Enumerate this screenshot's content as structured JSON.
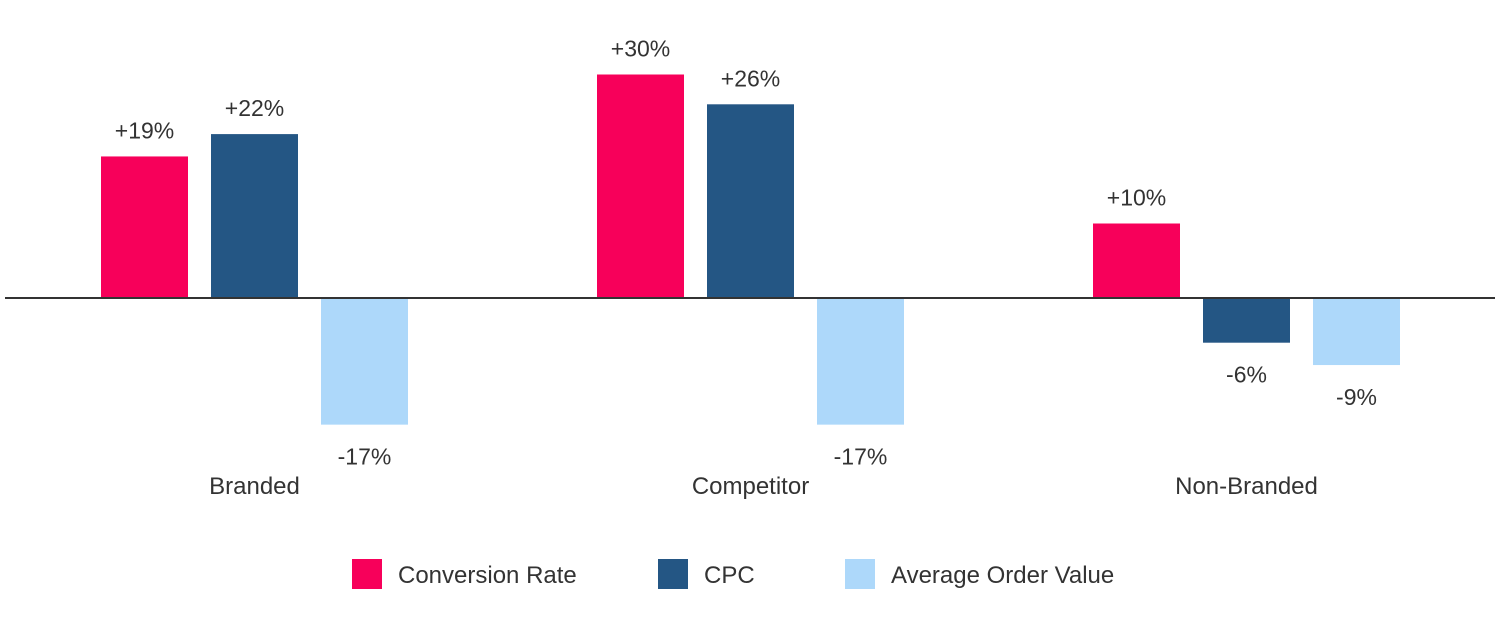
{
  "chart_data": {
    "type": "bar",
    "categories": [
      "Branded",
      "Competitor",
      "Non-Branded"
    ],
    "series": [
      {
        "name": "Conversion Rate",
        "color": "#F7005A",
        "values": [
          19,
          30,
          10
        ],
        "labels": [
          "+19%",
          "+30%",
          "+10%"
        ]
      },
      {
        "name": "CPC",
        "color": "#245684",
        "values": [
          22,
          26,
          -6
        ],
        "labels": [
          "+22%",
          "+26%",
          "-6%"
        ]
      },
      {
        "name": "Average Order Value",
        "color": "#ADD8FA",
        "values": [
          -17,
          -17,
          -9
        ],
        "labels": [
          "-17%",
          "-17%",
          "-9%"
        ]
      }
    ],
    "title": "",
    "xlabel": "",
    "ylabel": "",
    "ylim": [
      -22,
      33
    ],
    "grid": false,
    "legend_position": "bottom-center",
    "axis_color": "#333333"
  }
}
